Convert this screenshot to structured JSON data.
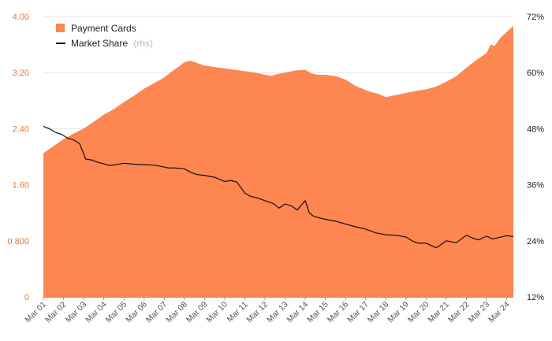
{
  "chart_data": {
    "type": "area",
    "title": "",
    "x_tick_labels": [
      "Mar 01",
      "Mar 02",
      "Mar 03",
      "Mar 04",
      "Mar 05",
      "Mar 06",
      "Mar 07",
      "Mar 08",
      "Mar 09",
      "Mar 10",
      "Mar 11",
      "Mar 12",
      "Mar 13",
      "Mar 14",
      "Mar 15",
      "Mar 16",
      "Mar 17",
      "Mar 18",
      "Mar 19",
      "Mar 20",
      "Mar 21",
      "Mar 22",
      "Mar 23",
      "Mar 24"
    ],
    "x_range": [
      2001.0,
      2024.33
    ],
    "left_axis": {
      "ylim": [
        0,
        4.0
      ],
      "ticks": [
        0,
        0.8,
        1.6,
        2.4,
        3.2,
        4.0
      ],
      "tick_labels": [
        "0",
        "0.800",
        "1.60",
        "2.40",
        "3.20",
        "4.00"
      ],
      "color": "#e8763a"
    },
    "right_axis": {
      "ylim": [
        12,
        72
      ],
      "ticks": [
        12,
        24,
        36,
        48,
        60,
        72
      ],
      "tick_labels": [
        "12%",
        "24%",
        "36%",
        "48%",
        "60%",
        "72%"
      ],
      "color": "#222222"
    },
    "legend": {
      "placement": "top-left",
      "items": [
        {
          "label": "Payment Cards",
          "note": "",
          "marker": "square",
          "color": "#fd8651"
        },
        {
          "label": "Market Share",
          "note": "(rhs)",
          "marker": "line",
          "color": "#111111"
        }
      ]
    },
    "series": [
      {
        "name": "Payment Cards",
        "type": "area",
        "axis": "left",
        "color": "#fd8651",
        "x": [
          2001.0,
          2001.5,
          2002.0,
          2002.5,
          2003.0,
          2003.5,
          2004.0,
          2004.5,
          2005.0,
          2005.5,
          2006.0,
          2006.5,
          2007.0,
          2007.4,
          2007.8,
          2008.0,
          2008.3,
          2008.6,
          2009.0,
          2009.5,
          2010.0,
          2010.5,
          2011.0,
          2011.5,
          2012.0,
          2012.3,
          2012.6,
          2013.0,
          2013.5,
          2014.0,
          2014.3,
          2014.6,
          2015.0,
          2015.5,
          2016.0,
          2016.5,
          2017.0,
          2017.3,
          2017.6,
          2018.0,
          2018.5,
          2019.0,
          2019.5,
          2020.0,
          2020.5,
          2021.0,
          2021.5,
          2022.0,
          2022.5,
          2023.0,
          2023.2,
          2023.4,
          2023.7,
          2024.0,
          2024.33
        ],
        "values": [
          2.05,
          2.15,
          2.25,
          2.33,
          2.4,
          2.5,
          2.6,
          2.68,
          2.78,
          2.87,
          2.97,
          3.05,
          3.13,
          3.22,
          3.3,
          3.35,
          3.37,
          3.34,
          3.3,
          3.28,
          3.26,
          3.24,
          3.22,
          3.2,
          3.17,
          3.15,
          3.18,
          3.2,
          3.23,
          3.24,
          3.19,
          3.17,
          3.17,
          3.15,
          3.1,
          3.01,
          2.95,
          2.92,
          2.9,
          2.85,
          2.88,
          2.91,
          2.94,
          2.96,
          3.0,
          3.07,
          3.15,
          3.27,
          3.38,
          3.48,
          3.6,
          3.58,
          3.7,
          3.78,
          3.87
        ]
      },
      {
        "name": "Market Share",
        "type": "line",
        "axis": "right",
        "color": "#111111",
        "x": [
          2001.0,
          2001.3,
          2001.6,
          2001.9,
          2002.2,
          2002.5,
          2002.8,
          2003.1,
          2003.4,
          2003.7,
          2004.0,
          2004.3,
          2004.6,
          2005.0,
          2005.5,
          2006.0,
          2006.5,
          2007.0,
          2007.2,
          2007.5,
          2008.0,
          2008.3,
          2008.6,
          2009.0,
          2009.5,
          2010.0,
          2010.3,
          2010.6,
          2011.0,
          2011.3,
          2011.6,
          2012.0,
          2012.4,
          2012.7,
          2013.0,
          2013.3,
          2013.6,
          2014.0,
          2014.2,
          2014.4,
          2014.6,
          2015.0,
          2015.5,
          2016.0,
          2016.5,
          2017.0,
          2017.5,
          2018.0,
          2018.5,
          2019.0,
          2019.3,
          2019.6,
          2020.0,
          2020.5,
          2021.0,
          2021.5,
          2022.0,
          2022.3,
          2022.6,
          2023.0,
          2023.3,
          2023.6,
          2024.0,
          2024.33
        ],
        "values": [
          48.5,
          48.0,
          47.2,
          46.8,
          46.0,
          45.6,
          44.8,
          41.5,
          41.3,
          40.8,
          40.5,
          40.1,
          40.3,
          40.6,
          40.4,
          40.3,
          40.2,
          39.8,
          39.6,
          39.6,
          39.4,
          38.7,
          38.2,
          38.0,
          37.6,
          36.7,
          36.9,
          36.6,
          34.2,
          33.5,
          33.2,
          32.6,
          32.0,
          31.0,
          31.9,
          31.5,
          30.6,
          32.6,
          30.0,
          29.3,
          29.0,
          28.6,
          28.2,
          27.6,
          27.0,
          26.5,
          25.7,
          25.3,
          25.2,
          24.8,
          24.0,
          23.5,
          23.5,
          22.5,
          24.0,
          23.6,
          25.2,
          24.6,
          24.2,
          25.0,
          24.4,
          24.7,
          25.1,
          24.9
        ]
      }
    ]
  }
}
